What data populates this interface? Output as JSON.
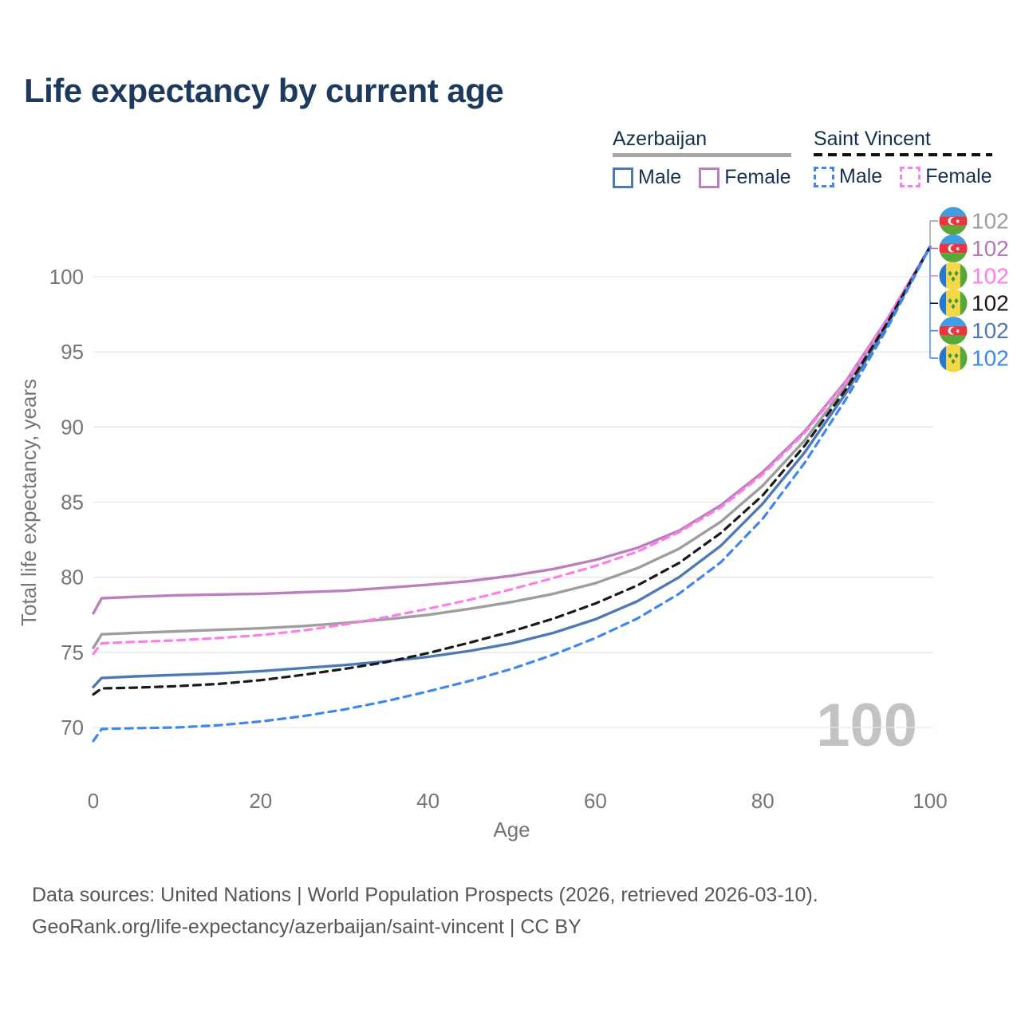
{
  "page": {
    "title": "Life expectancy by current age",
    "watermark": "100"
  },
  "legend": {
    "groups": [
      {
        "label": "Azerbaijan",
        "line_style": "solid",
        "line_color": "#a6a6a6",
        "items": [
          {
            "label": "Male",
            "color": "#4e79b5",
            "dashed": false
          },
          {
            "label": "Female",
            "color": "#bc7fbe",
            "dashed": false
          }
        ]
      },
      {
        "label": "Saint Vincent",
        "line_style": "dashed",
        "line_color": "#111111",
        "items": [
          {
            "label": "Male",
            "color": "#3d87ee",
            "dashed": true
          },
          {
            "label": "Female",
            "color": "#ff7de9",
            "dashed": true
          }
        ]
      }
    ]
  },
  "footer": {
    "line1": "Data sources: United Nations | World Population Prospects (2026, retrieved 2026-03-10).",
    "line2": "GeoRank.org/life-expectancy/azerbaijan/saint-vincent | CC BY"
  },
  "chart_data": {
    "type": "line",
    "title": "Life expectancy by current age",
    "xlabel": "Age",
    "ylabel": "Total life expectancy, years",
    "xlim": [
      0,
      100
    ],
    "ylim": [
      68.5,
      103
    ],
    "xticks": [
      0,
      20,
      40,
      60,
      80,
      100
    ],
    "yticks": [
      70,
      75,
      80,
      85,
      90,
      95,
      100
    ],
    "grid": "horizontal",
    "grid_color": "#e7e7e7",
    "tick_color": "#757575",
    "x": [
      0,
      1,
      5,
      10,
      15,
      20,
      25,
      30,
      35,
      40,
      45,
      50,
      55,
      60,
      65,
      70,
      75,
      80,
      85,
      90,
      95,
      100
    ],
    "series": [
      {
        "name": "Azerbaijan (both sexes)",
        "country": "Azerbaijan",
        "flag": "az",
        "color": "#9e9e9e",
        "dashed": false,
        "values": [
          75.3,
          76.2,
          76.3,
          76.4,
          76.5,
          76.6,
          76.75,
          76.95,
          77.2,
          77.5,
          77.9,
          78.35,
          78.9,
          79.6,
          80.6,
          81.9,
          83.7,
          86.1,
          89.1,
          92.8,
          97.2,
          102
        ]
      },
      {
        "name": "Azerbaijan Female",
        "country": "Azerbaijan",
        "flag": "az",
        "color": "#bc7fbe",
        "dashed": false,
        "values": [
          77.6,
          78.6,
          78.7,
          78.8,
          78.85,
          78.9,
          79.0,
          79.1,
          79.3,
          79.5,
          79.75,
          80.1,
          80.55,
          81.15,
          81.95,
          83.1,
          84.8,
          87.0,
          89.7,
          93.1,
          97.3,
          102
        ]
      },
      {
        "name": "Azerbaijan Male",
        "country": "Azerbaijan",
        "flag": "az",
        "color": "#4e79b5",
        "dashed": false,
        "values": [
          72.7,
          73.3,
          73.4,
          73.5,
          73.6,
          73.75,
          73.95,
          74.15,
          74.4,
          74.7,
          75.1,
          75.6,
          76.3,
          77.2,
          78.4,
          80.0,
          82.1,
          84.9,
          88.3,
          92.3,
          96.9,
          102
        ]
      },
      {
        "name": "Saint Vincent Female",
        "country": "Saint Vincent",
        "flag": "sv",
        "color": "#ff7de9",
        "dashed": true,
        "values": [
          74.9,
          75.6,
          75.7,
          75.8,
          75.95,
          76.15,
          76.45,
          76.85,
          77.35,
          77.9,
          78.5,
          79.2,
          79.95,
          80.75,
          81.7,
          83.0,
          84.65,
          86.85,
          89.6,
          93.0,
          97.25,
          102
        ]
      },
      {
        "name": "Saint Vincent (both sexes)",
        "country": "Saint Vincent",
        "flag": "sv",
        "color": "#1a1a1a",
        "dashed": true,
        "values": [
          72.2,
          72.6,
          72.65,
          72.75,
          72.9,
          73.15,
          73.5,
          73.9,
          74.35,
          74.95,
          75.65,
          76.4,
          77.25,
          78.25,
          79.45,
          80.95,
          82.95,
          85.45,
          88.75,
          92.55,
          97.05,
          102
        ]
      },
      {
        "name": "Saint Vincent Male",
        "country": "Saint Vincent",
        "flag": "sv",
        "color": "#3d87ee",
        "dashed": true,
        "values": [
          69.1,
          69.9,
          69.95,
          70.0,
          70.15,
          70.4,
          70.75,
          71.2,
          71.75,
          72.4,
          73.1,
          73.9,
          74.85,
          75.95,
          77.25,
          78.9,
          81.0,
          83.9,
          87.6,
          91.9,
          96.7,
          102
        ]
      }
    ],
    "callouts": [
      {
        "flag": "az",
        "country": "Azerbaijan",
        "color": "#9e9e9e",
        "label": "102"
      },
      {
        "flag": "az",
        "country": "Azerbaijan",
        "color": "#b577b5",
        "label": "102"
      },
      {
        "flag": "sv",
        "country": "Saint Vincent",
        "color": "#ff7de9",
        "label": "102"
      },
      {
        "flag": "sv",
        "country": "Saint Vincent",
        "color": "#1a1a1a",
        "label": "102"
      },
      {
        "flag": "az",
        "country": "Azerbaijan",
        "color": "#4e79b5",
        "label": "102"
      },
      {
        "flag": "sv",
        "country": "Saint Vincent",
        "color": "#3d87ee",
        "label": "102"
      }
    ],
    "flag_colors": {
      "az": {
        "blue": "#3f9ee3",
        "red": "#e8353f",
        "green": "#56a839",
        "crescent": "#ffffff"
      },
      "sv": {
        "blue": "#2478d0",
        "yellow": "#f5d848",
        "green": "#56a839",
        "diamond": "#3f9443"
      }
    }
  }
}
